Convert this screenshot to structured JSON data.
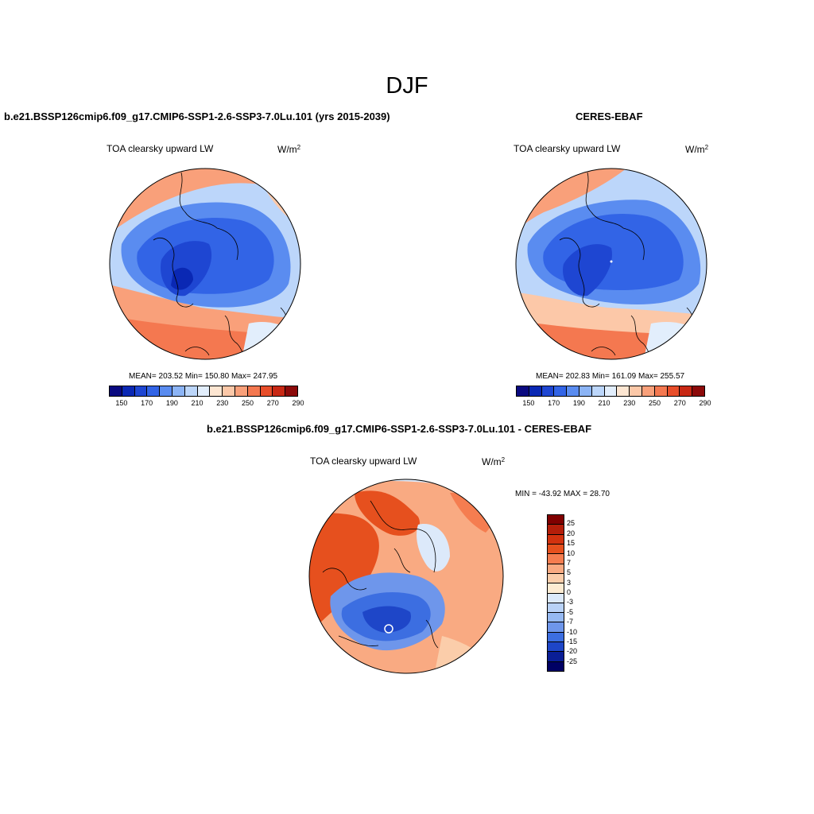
{
  "suptitle": "DJF",
  "panel_left": {
    "title": "b.e21.BSSP126cmip6.f09_g17.CMIP6-SSP1-2.6-SSP3-7.0Lu.101 (yrs 2015-2039)",
    "variable": "TOA clearsky upward LW",
    "units_base": "W/m",
    "units_exp": "2",
    "stats": "MEAN= 203.52  Min= 150.80  Max= 247.95",
    "colorbar_ticks": [
      "150",
      "170",
      "190",
      "210",
      "230",
      "250",
      "270",
      "290"
    ]
  },
  "panel_right": {
    "title": "CERES-EBAF",
    "variable": "TOA clearsky upward LW",
    "units_base": "W/m",
    "units_exp": "2",
    "stats": "MEAN= 202.83  Min= 161.09  Max= 255.57",
    "colorbar_ticks": [
      "150",
      "170",
      "190",
      "210",
      "230",
      "250",
      "270",
      "290"
    ]
  },
  "panel_diff": {
    "title": "b.e21.BSSP126cmip6.f09_g17.CMIP6-SSP1-2.6-SSP3-7.0Lu.101 - CERES-EBAF",
    "variable": "TOA clearsky upward LW",
    "units_base": "W/m",
    "units_exp": "2",
    "stats": "MIN = -43.92 MAX =  28.70",
    "colorbar_ticks": [
      "25",
      "20",
      "15",
      "10",
      "7",
      "5",
      "3",
      "0",
      "-3",
      "-5",
      "-7",
      "-10",
      "-15",
      "-20",
      "-25"
    ]
  },
  "colors": {
    "abs_scale": [
      "#0a0a80",
      "#0a28b4",
      "#1e46d2",
      "#3264e6",
      "#5a8cf0",
      "#8cb4f5",
      "#bcd6fa",
      "#e2eefc",
      "#fde6d2",
      "#fcc8a8",
      "#f9a07a",
      "#f47850",
      "#e84e2a",
      "#c82814",
      "#8c0a0a"
    ],
    "diff_scale": [
      "#800000",
      "#b41e0a",
      "#d2320f",
      "#e6501e",
      "#f57d50",
      "#f9aa82",
      "#fbcdaa",
      "#fdebd2",
      "#dce9fa",
      "#b9d2f7",
      "#96b9f2",
      "#6e96eb",
      "#3c6ee1",
      "#1e46c8",
      "#0a1e96",
      "#000064"
    ]
  }
}
